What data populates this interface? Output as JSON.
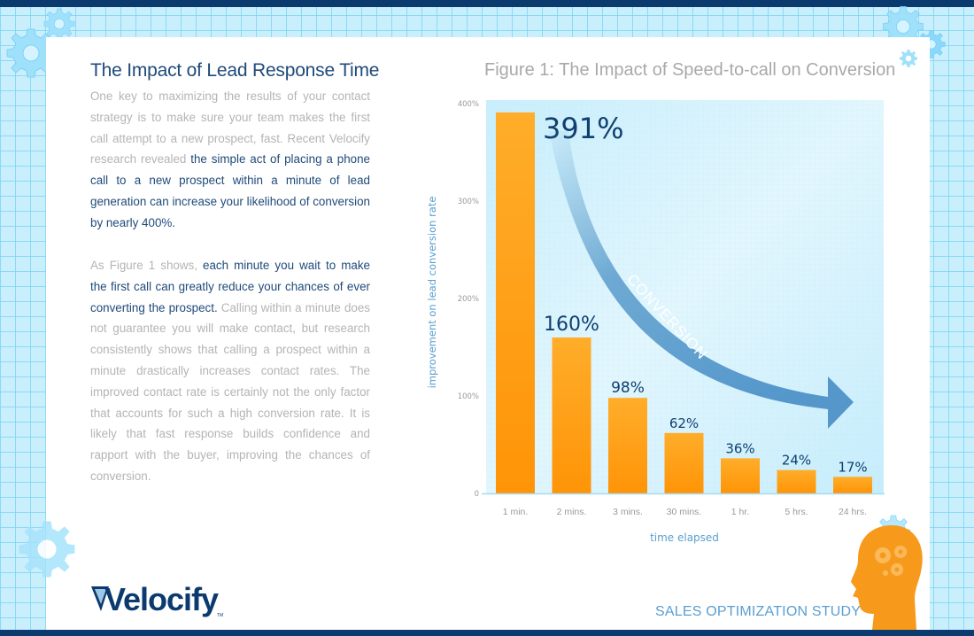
{
  "colors": {
    "brand_navy": "#0b3a6e",
    "heading_blue": "#1f4a7a",
    "body_gray": "#b4b4b4",
    "bar_orange": "#ffa21f",
    "axis_label_blue": "#5a9fd0",
    "arrow_blue": "#5a9ccc",
    "plot_bg": "#d4f0fc"
  },
  "article": {
    "title": "The Impact of Lead Response Time",
    "p1": {
      "plain": "One key to maximizing the results of your contact strategy is to make sure your team makes the first call attempt to a new prospect, fast. Recent Velocify research revealed ",
      "highlight": "the simple act of placing a phone call to a new prospect within a minute of lead generation can increase your likelihood of conversion by nearly 400%."
    },
    "p2": {
      "plain_before": "As Figure 1 shows, ",
      "highlight": "each minute you wait to make the first call can greatly reduce your chances of ever converting the prospect.",
      "plain_after": " Calling within a minute does not guarantee you will make contact, but research consistently shows that calling a prospect within a minute drastically increases contact rates. The improved contact rate is certainly not the only factor that accounts for such a high conversion rate. It is likely that fast response builds confidence and rapport with the buyer, improving the chances of conversion."
    }
  },
  "chart_data": {
    "type": "bar",
    "title": "Figure 1: The Impact of Speed-to-call on Conversion",
    "xlabel": "time elapsed",
    "ylabel": "improvement on lead conversion rate",
    "categories": [
      "1 min.",
      "2 mins.",
      "3 mins.",
      "30 mins.",
      "1 hr.",
      "5 hrs.",
      "24 hrs."
    ],
    "values": [
      391,
      160,
      98,
      62,
      36,
      24,
      17
    ],
    "data_labels": [
      "391%",
      "160%",
      "98%",
      "62%",
      "36%",
      "24%",
      "17%"
    ],
    "ylim": [
      0,
      400
    ],
    "yticks": [
      0,
      100,
      200,
      300,
      400
    ],
    "ytick_labels": [
      "0",
      "100%",
      "200%",
      "300%",
      "400%"
    ],
    "grid": false,
    "annotation": "CONVERSION",
    "annotation_shape": "curved arrow trending down-right"
  },
  "footer": {
    "logo_text": "Velocify",
    "trademark": "TM",
    "study_label": "SALES OPTIMIZATION STUDY"
  }
}
